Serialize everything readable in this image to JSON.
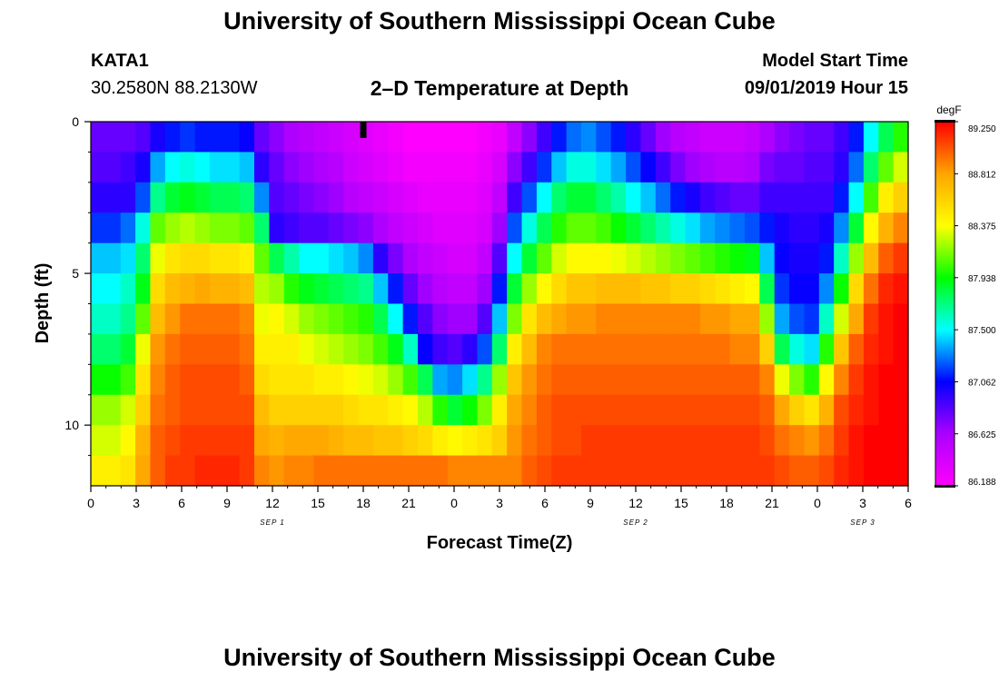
{
  "page": {
    "title_top": "University of Southern Mississippi Ocean Cube",
    "title_bottom": "University of Southern Mississippi Ocean Cube",
    "station": "KATA1",
    "coords": "30.2580N 88.2130W",
    "plot_title": "2–D Temperature at Depth",
    "model_label": "Model Start Time",
    "model_time": "09/01/2019 Hour 15"
  },
  "chart_data": {
    "type": "heatmap",
    "title": "2–D Temperature at Depth",
    "xlabel": "Forecast Time(Z)",
    "ylabel": "Depth (ft)",
    "x_tick_labels": [
      "0",
      "3",
      "6",
      "9",
      "12",
      "15",
      "18",
      "21",
      "0",
      "3",
      "6",
      "9",
      "12",
      "15",
      "18",
      "21",
      "0",
      "3",
      "6"
    ],
    "date_labels": [
      {
        "text": "SEP 1",
        "hour": 12
      },
      {
        "text": "SEP 2",
        "hour": 36
      },
      {
        "text": "SEP 3",
        "hour": 51
      }
    ],
    "x_range_hours": [
      0,
      54
    ],
    "y_ticks": [
      0,
      5,
      10
    ],
    "ylim": [
      0,
      12
    ],
    "depth_levels": 12,
    "current_time_marker_hour": 18,
    "colorbar": {
      "unit": "degF",
      "min": 86.188,
      "max": 89.25,
      "tick_labels": [
        "89.250",
        "88.812",
        "88.375",
        "87.938",
        "87.500",
        "87.062",
        "86.625",
        "86.188"
      ],
      "colors": [
        "#ff00ff",
        "#aa00ff",
        "#0000ff",
        "#00ffff",
        "#00ff00",
        "#ffff00",
        "#ffa500",
        "#ff0000"
      ]
    },
    "depth_profile_degF": [
      [
        86.8,
        86.85,
        86.95,
        87.15,
        87.4,
        87.5,
        87.6,
        87.75,
        87.95,
        88.2,
        88.3,
        88.45
      ],
      [
        86.8,
        86.85,
        86.95,
        87.15,
        87.4,
        87.5,
        87.6,
        87.75,
        87.95,
        88.2,
        88.3,
        88.45
      ],
      [
        86.8,
        86.9,
        86.95,
        87.25,
        87.45,
        87.6,
        87.7,
        87.85,
        88.05,
        88.3,
        88.4,
        88.5
      ],
      [
        86.85,
        87.0,
        87.2,
        87.55,
        87.75,
        87.9,
        88.1,
        88.35,
        88.5,
        88.6,
        88.75,
        88.8
      ],
      [
        87.0,
        87.35,
        87.7,
        88.1,
        88.35,
        88.55,
        88.7,
        88.85,
        88.9,
        88.95,
        89.0,
        89.0
      ],
      [
        87.1,
        87.5,
        87.85,
        88.2,
        88.5,
        88.7,
        88.85,
        88.95,
        89.0,
        89.0,
        89.05,
        89.1
      ],
      [
        87.15,
        87.55,
        87.9,
        88.25,
        88.55,
        88.75,
        88.95,
        89.0,
        89.05,
        89.05,
        89.1,
        89.1
      ],
      [
        87.1,
        87.5,
        87.85,
        88.2,
        88.55,
        88.8,
        88.95,
        89.0,
        89.05,
        89.05,
        89.1,
        89.15
      ],
      [
        87.1,
        87.45,
        87.8,
        88.15,
        88.5,
        88.75,
        88.95,
        89.0,
        89.05,
        89.05,
        89.1,
        89.15
      ],
      [
        87.1,
        87.45,
        87.8,
        88.15,
        88.5,
        88.75,
        88.95,
        89.0,
        89.05,
        89.05,
        89.1,
        89.15
      ],
      [
        87.05,
        87.4,
        87.75,
        88.1,
        88.45,
        88.7,
        88.9,
        88.95,
        89.0,
        89.05,
        89.1,
        89.1
      ],
      [
        86.8,
        86.95,
        87.3,
        87.75,
        88.1,
        88.25,
        88.35,
        88.45,
        88.55,
        88.7,
        88.8,
        88.9
      ],
      [
        86.7,
        86.8,
        86.85,
        86.95,
        87.8,
        88.2,
        88.4,
        88.45,
        88.5,
        88.6,
        88.75,
        88.85
      ],
      [
        86.6,
        86.7,
        86.8,
        86.9,
        87.65,
        88.0,
        88.3,
        88.45,
        88.5,
        88.6,
        88.8,
        88.9
      ],
      [
        86.55,
        86.65,
        86.75,
        86.85,
        87.5,
        87.9,
        88.2,
        88.35,
        88.5,
        88.6,
        88.8,
        88.9
      ],
      [
        86.5,
        86.6,
        86.7,
        86.85,
        87.5,
        87.85,
        88.15,
        88.3,
        88.45,
        88.6,
        88.8,
        88.95
      ],
      [
        86.45,
        86.55,
        86.65,
        86.8,
        87.45,
        87.8,
        88.1,
        88.25,
        88.45,
        88.6,
        88.75,
        88.95
      ],
      [
        86.4,
        86.45,
        86.55,
        86.75,
        87.4,
        87.75,
        88.05,
        88.2,
        88.4,
        88.55,
        88.7,
        88.95
      ],
      [
        86.35,
        86.4,
        86.5,
        86.7,
        87.3,
        87.7,
        88.0,
        88.15,
        88.35,
        88.5,
        88.7,
        88.95
      ],
      [
        86.3,
        86.35,
        86.45,
        86.6,
        86.95,
        87.4,
        87.8,
        88.05,
        88.3,
        88.5,
        88.65,
        88.95
      ],
      [
        86.25,
        86.3,
        86.4,
        86.5,
        86.75,
        87.1,
        87.5,
        87.9,
        88.2,
        88.45,
        88.65,
        88.95
      ],
      [
        86.2,
        86.25,
        86.35,
        86.45,
        86.6,
        86.8,
        87.1,
        87.6,
        88.05,
        88.4,
        88.6,
        88.95
      ],
      [
        86.2,
        86.25,
        86.3,
        86.4,
        86.5,
        86.65,
        86.85,
        87.05,
        87.8,
        88.25,
        88.55,
        88.95
      ],
      [
        86.2,
        86.25,
        86.3,
        86.35,
        86.45,
        86.55,
        86.7,
        86.9,
        87.35,
        88.0,
        88.45,
        88.95
      ],
      [
        86.2,
        86.25,
        86.3,
        86.35,
        86.4,
        86.5,
        86.65,
        86.85,
        87.3,
        87.85,
        88.4,
        88.9
      ],
      [
        86.2,
        86.25,
        86.3,
        86.35,
        86.4,
        86.5,
        86.65,
        86.95,
        87.45,
        87.95,
        88.45,
        88.9
      ],
      [
        86.25,
        86.3,
        86.35,
        86.4,
        86.5,
        86.65,
        86.85,
        87.2,
        87.7,
        88.15,
        88.5,
        88.9
      ],
      [
        86.3,
        86.4,
        86.5,
        86.65,
        86.85,
        87.1,
        87.4,
        87.75,
        88.2,
        88.45,
        88.6,
        88.9
      ],
      [
        86.5,
        86.7,
        86.9,
        87.2,
        87.5,
        87.85,
        88.15,
        88.45,
        88.65,
        88.8,
        88.85,
        88.9
      ],
      [
        86.7,
        86.9,
        87.2,
        87.55,
        87.85,
        88.2,
        88.5,
        88.7,
        88.85,
        88.9,
        88.95,
        89.0
      ],
      [
        86.9,
        87.15,
        87.5,
        87.8,
        88.1,
        88.4,
        88.7,
        88.9,
        88.95,
        89.0,
        89.0,
        89.05
      ],
      [
        87.1,
        87.4,
        87.75,
        88.0,
        88.3,
        88.55,
        88.8,
        88.95,
        89.0,
        89.05,
        89.05,
        89.1
      ],
      [
        87.25,
        87.55,
        87.85,
        88.1,
        88.4,
        88.65,
        88.85,
        88.95,
        89.0,
        89.05,
        89.05,
        89.1
      ],
      [
        87.3,
        87.55,
        87.85,
        88.1,
        88.4,
        88.65,
        88.85,
        88.95,
        89.0,
        89.05,
        89.1,
        89.1
      ],
      [
        87.2,
        87.45,
        87.75,
        88.05,
        88.4,
        88.7,
        88.9,
        88.95,
        89.0,
        89.05,
        89.1,
        89.1
      ],
      [
        87.1,
        87.35,
        87.65,
        87.95,
        88.35,
        88.7,
        88.9,
        88.95,
        89.0,
        89.05,
        89.1,
        89.1
      ],
      [
        86.95,
        87.2,
        87.5,
        87.85,
        88.3,
        88.7,
        88.9,
        88.95,
        89.0,
        89.05,
        89.1,
        89.1
      ],
      [
        86.8,
        87.05,
        87.4,
        87.75,
        88.25,
        88.65,
        88.9,
        88.95,
        89.0,
        89.05,
        89.1,
        89.1
      ],
      [
        86.65,
        86.9,
        87.25,
        87.65,
        88.2,
        88.65,
        88.9,
        88.95,
        89.0,
        89.05,
        89.1,
        89.1
      ],
      [
        86.55,
        86.75,
        87.1,
        87.55,
        88.15,
        88.6,
        88.9,
        88.95,
        89.0,
        89.05,
        89.1,
        89.1
      ],
      [
        86.5,
        86.65,
        87.0,
        87.45,
        88.1,
        88.6,
        88.9,
        88.95,
        89.0,
        89.05,
        89.1,
        89.1
      ],
      [
        86.45,
        86.6,
        86.9,
        87.35,
        88.05,
        88.55,
        88.85,
        88.95,
        89.0,
        89.05,
        89.1,
        89.1
      ],
      [
        86.45,
        86.55,
        86.85,
        87.3,
        88.0,
        88.5,
        88.85,
        88.95,
        89.0,
        89.05,
        89.1,
        89.1
      ],
      [
        86.45,
        86.55,
        86.8,
        87.25,
        87.95,
        88.45,
        88.8,
        88.9,
        89.0,
        89.05,
        89.1,
        89.1
      ],
      [
        86.5,
        86.6,
        86.8,
        87.2,
        87.9,
        88.4,
        88.8,
        88.9,
        89.0,
        89.05,
        89.1,
        89.1
      ],
      [
        86.6,
        86.75,
        86.9,
        87.1,
        87.4,
        87.8,
        88.2,
        88.6,
        88.9,
        89.0,
        89.05,
        89.1
      ],
      [
        86.7,
        86.8,
        86.9,
        87.0,
        87.05,
        87.15,
        87.35,
        87.8,
        88.35,
        88.8,
        88.95,
        89.05
      ],
      [
        86.75,
        86.8,
        86.9,
        86.95,
        87.0,
        87.05,
        87.2,
        87.55,
        88.15,
        88.6,
        88.9,
        89.0
      ],
      [
        86.8,
        86.85,
        86.9,
        86.95,
        87.0,
        87.05,
        87.15,
        87.45,
        88.0,
        88.5,
        88.85,
        89.0
      ],
      [
        86.8,
        86.85,
        86.9,
        87.0,
        87.1,
        87.3,
        87.6,
        88.0,
        88.4,
        88.75,
        88.95,
        89.05
      ],
      [
        86.9,
        86.95,
        87.1,
        87.3,
        87.6,
        87.95,
        88.3,
        88.65,
        88.9,
        89.05,
        89.1,
        89.15
      ],
      [
        87.1,
        87.25,
        87.5,
        87.85,
        88.2,
        88.55,
        88.8,
        89.0,
        89.1,
        89.15,
        89.2,
        89.2
      ],
      [
        87.5,
        87.75,
        88.05,
        88.4,
        88.7,
        88.95,
        89.1,
        89.15,
        89.2,
        89.2,
        89.25,
        89.25
      ],
      [
        87.8,
        88.1,
        88.45,
        88.75,
        89.0,
        89.15,
        89.2,
        89.2,
        89.25,
        89.25,
        89.25,
        89.25
      ],
      [
        88.0,
        88.3,
        88.6,
        88.9,
        89.1,
        89.2,
        89.25,
        89.25,
        89.25,
        89.25,
        89.25,
        89.25
      ]
    ]
  }
}
